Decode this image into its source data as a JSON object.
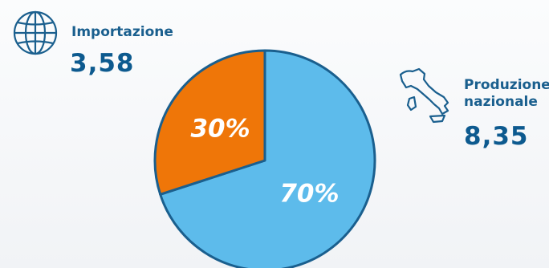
{
  "colors": {
    "accent": "#1a5f8e",
    "import_slice": "#ef7608",
    "national_slice": "#5dbbeb",
    "outline": "#1a5f8e"
  },
  "legend": {
    "import": {
      "icon": "globe-icon",
      "label": "Importazione",
      "value": "3,58"
    },
    "national": {
      "icon": "italy-map-icon",
      "label_line1": "Produzione",
      "label_line2": "nazionale",
      "value": "8,35"
    }
  },
  "chart_data": {
    "type": "pie",
    "slices": [
      {
        "label": "70%",
        "value": 70,
        "color": "#5dbbeb"
      },
      {
        "label": "30%",
        "value": 30,
        "color": "#ef7608"
      }
    ]
  }
}
